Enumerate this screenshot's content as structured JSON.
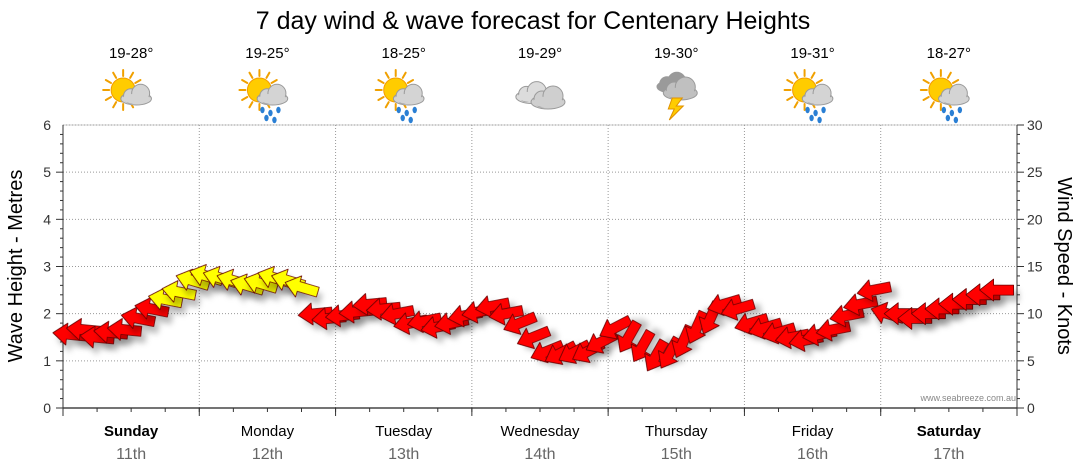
{
  "chart_data": {
    "type": "line",
    "title": "7 day wind & wave forecast for Centenary Heights",
    "ylabel_left": "Wave Height - Metres",
    "ylabel_right": "Wind Speed - Knots",
    "ylim_left": [
      0,
      6
    ],
    "ylim_right": [
      0,
      30
    ],
    "yticks_left": [
      "0",
      "1",
      "2",
      "3",
      "4",
      "5",
      "6"
    ],
    "yticks_right": [
      "0",
      "5",
      "10",
      "15",
      "20",
      "25",
      "30"
    ],
    "credit": "www.seabreeze.com.au",
    "days": [
      {
        "day": "Sunday",
        "date": "11th",
        "temp": "19-28°",
        "icon": "sun-cloud-icon",
        "bold": true
      },
      {
        "day": "Monday",
        "date": "12th",
        "temp": "19-25°",
        "icon": "sun-cloud-rain-icon",
        "bold": false
      },
      {
        "day": "Tuesday",
        "date": "13th",
        "temp": "18-25°",
        "icon": "sun-cloud-rain-icon",
        "bold": false
      },
      {
        "day": "Wednesday",
        "date": "14th",
        "temp": "19-29°",
        "icon": "cloud-icon",
        "bold": false
      },
      {
        "day": "Thursday",
        "date": "15th",
        "temp": "19-30°",
        "icon": "storm-icon",
        "bold": false
      },
      {
        "day": "Friday",
        "date": "16th",
        "temp": "19-31°",
        "icon": "sun-cloud-rain-icon",
        "bold": false
      },
      {
        "day": "Saturday",
        "date": "17th",
        "temp": "18-27°",
        "icon": "sun-cloud-rain-icon",
        "bold": true
      }
    ],
    "series": [
      {
        "name": "Wind Speed",
        "unit": "knots",
        "x_days": [
          0.0,
          0.1,
          0.2,
          0.3,
          0.4,
          0.5,
          0.6,
          0.7,
          0.8,
          0.9,
          1.0,
          1.1,
          1.2,
          1.3,
          1.4,
          1.5,
          1.6,
          1.7,
          1.8,
          1.9,
          2.0,
          2.1,
          2.2,
          2.3,
          2.4,
          2.5,
          2.6,
          2.7,
          2.8,
          2.9,
          3.0,
          3.1,
          3.2,
          3.3,
          3.4,
          3.5,
          3.6,
          3.7,
          3.8,
          3.9,
          4.0,
          4.1,
          4.2,
          4.3,
          4.4,
          4.5,
          4.6,
          4.7,
          4.8,
          4.9,
          5.0,
          5.1,
          5.2,
          5.3,
          5.4,
          5.5,
          5.6,
          5.7,
          5.8,
          5.9,
          6.0,
          6.1,
          6.2,
          6.3,
          6.4,
          6.5,
          6.6,
          6.7,
          6.8
        ],
        "values": [
          7.8,
          8.3,
          7.5,
          8.0,
          8.3,
          9.5,
          10.5,
          11.5,
          12.3,
          13.5,
          14.0,
          13.8,
          13.5,
          13.0,
          13.2,
          13.8,
          13.5,
          12.8,
          10.0,
          9.5,
          9.8,
          10.2,
          11.0,
          10.5,
          10.0,
          9.0,
          9.2,
          8.6,
          9.0,
          9.8,
          10.2,
          10.8,
          10.0,
          9.0,
          7.5,
          6.0,
          5.8,
          5.9,
          6.0,
          7.0,
          8.5,
          7.5,
          6.5,
          5.5,
          5.8,
          7.0,
          8.5,
          9.5,
          11.0,
          10.5,
          9.0,
          8.5,
          8.0,
          7.5,
          7.2,
          7.8,
          8.3,
          9.8,
          11.0,
          12.5,
          10.0,
          10.0,
          9.5,
          10.0,
          10.5,
          11.0,
          11.5,
          12.0,
          12.5
        ],
        "direction_deg": [
          80,
          80,
          80,
          80,
          80,
          70,
          70,
          70,
          70,
          60,
          60,
          60,
          60,
          60,
          60,
          60,
          60,
          60,
          100,
          100,
          100,
          100,
          100,
          100,
          110,
          110,
          110,
          110,
          110,
          110,
          110,
          110,
          110,
          130,
          130,
          130,
          140,
          140,
          140,
          140,
          140,
          200,
          200,
          200,
          200,
          210,
          210,
          210,
          120,
          120,
          120,
          120,
          120,
          110,
          110,
          110,
          110,
          110,
          110,
          110,
          60,
          90,
          90,
          90,
          90,
          90,
          90,
          90,
          90
        ],
        "colors_by_range": {
          "light": "#ffff00",
          "moderate": "#ff0000"
        }
      }
    ],
    "wave_height_m": []
  }
}
